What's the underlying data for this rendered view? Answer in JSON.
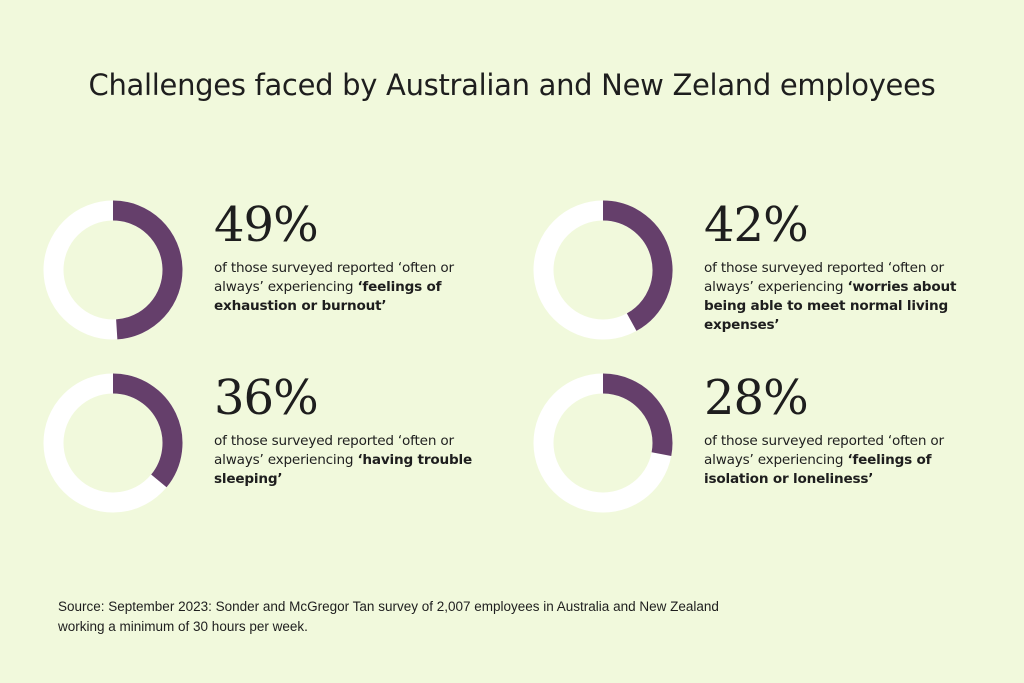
{
  "title": "Challenges faced by Australian and New Zeland employees",
  "colors": {
    "background": "#f1f9dc",
    "ring": "#ffffff",
    "fill": "#653f6b",
    "text": "#1e1e1e"
  },
  "chart_data": {
    "type": "pie",
    "title": "Challenges faced by Australian and New Zeland employees",
    "items": [
      {
        "value": 49,
        "label": "49%",
        "lead": "of those surveyed reported ‘often or always’ experiencing ",
        "emphasis": "‘feelings of exhaustion or burnout’"
      },
      {
        "value": 42,
        "label": "42%",
        "lead": "of those surveyed reported ‘often or always’ experiencing ",
        "emphasis": "‘worries about being able to meet normal living expenses’"
      },
      {
        "value": 36,
        "label": "36%",
        "lead": "of those surveyed reported ‘often or always’ experiencing ",
        "emphasis": "‘having trouble sleeping’"
      },
      {
        "value": 28,
        "label": "28%",
        "lead": "of those surveyed reported ‘often or always’ experiencing ",
        "emphasis": "‘feelings of isolation or loneliness’"
      }
    ]
  },
  "source": {
    "line1": "Source: September 2023: Sonder and McGregor Tan survey of 2,007 employees in Australia and New Zealand",
    "line2": "working a minimum of 30 hours per week."
  }
}
